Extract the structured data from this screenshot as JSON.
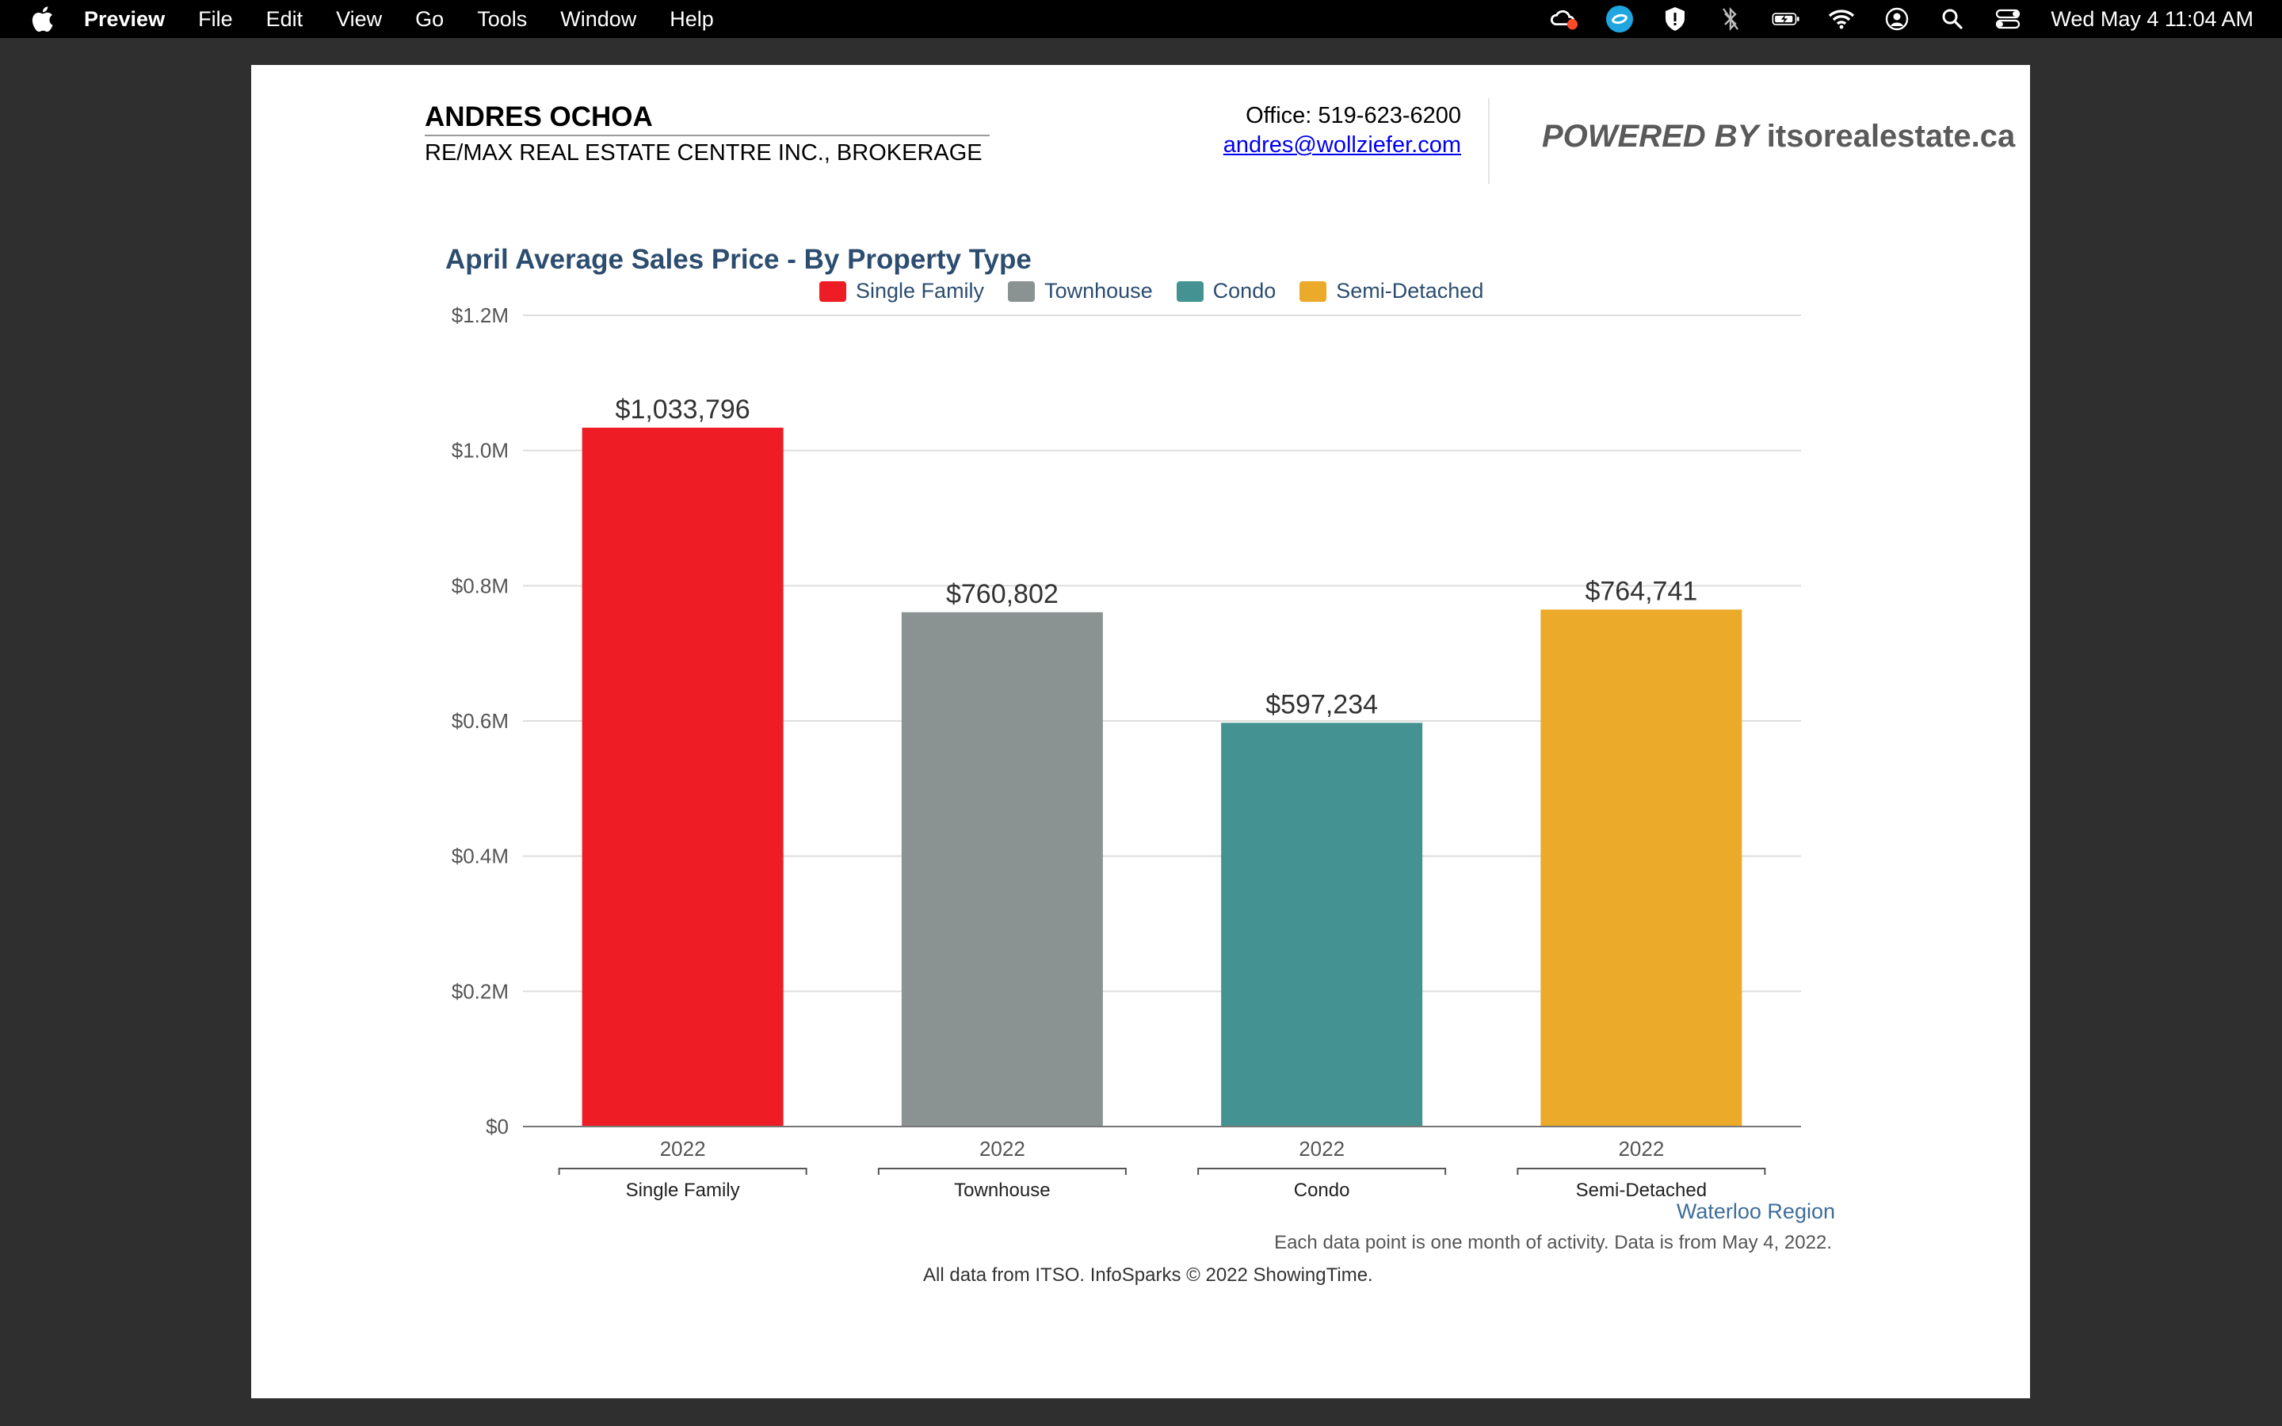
{
  "menubar": {
    "app_name": "Preview",
    "items": [
      "File",
      "Edit",
      "View",
      "Go",
      "Tools",
      "Window",
      "Help"
    ],
    "clock": "Wed May 4  11:04 AM"
  },
  "header": {
    "agent_name": "ANDRES OCHOA",
    "brokerage": "RE/MAX REAL ESTATE CENTRE INC., BROKERAGE",
    "office": "Office: 519-623-6200",
    "email": "andres@wollziefer.com",
    "powered_by": "POWERED BY",
    "powered_site": "itsorealestate.ca"
  },
  "chart_data": {
    "type": "bar",
    "title": "April Average Sales Price - By Property Type",
    "categories": [
      "Single Family",
      "Townhouse",
      "Condo",
      "Semi-Detached"
    ],
    "x_tick_labels": [
      "2022",
      "2022",
      "2022",
      "2022"
    ],
    "values": [
      1033796,
      760802,
      597234,
      764741
    ],
    "data_labels": [
      "$1,033,796",
      "$760,802",
      "$597,234",
      "$764,741"
    ],
    "colors": [
      "#ee1c25",
      "#8a9391",
      "#449392",
      "#ecaa2a"
    ],
    "legend": [
      "Single Family",
      "Townhouse",
      "Condo",
      "Semi-Detached"
    ],
    "legend_position": "top-center",
    "ylim": [
      0,
      1200000
    ],
    "y_ticks": [
      0,
      200000,
      400000,
      600000,
      800000,
      1000000,
      1200000
    ],
    "y_tick_labels": [
      "$0",
      "$0.2M",
      "$0.4M",
      "$0.6M",
      "$0.8M",
      "$1.0M",
      "$1.2M"
    ],
    "grid": true
  },
  "footer": {
    "region": "Waterloo Region",
    "note": "Each data point is one month of activity. Data is from May 4, 2022.",
    "copyright": "All data from ITSO. InfoSparks © 2022 ShowingTime."
  }
}
